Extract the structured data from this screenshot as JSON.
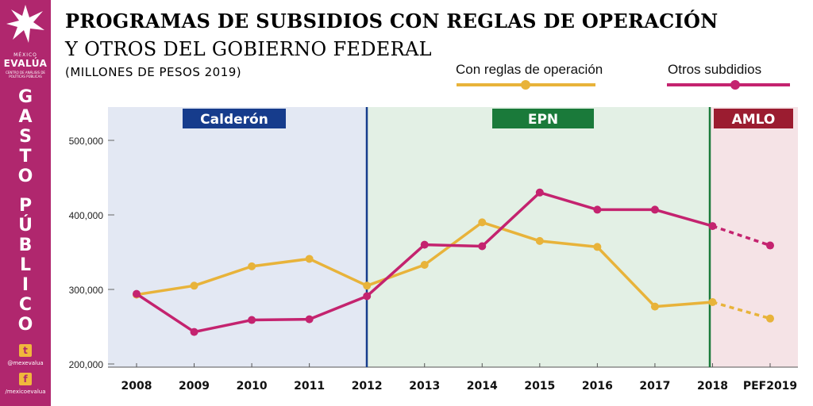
{
  "title": {
    "line1": "PROGRAMAS DE SUBSIDIOS CON REGLAS DE OPERACIÓN",
    "line2": "Y OTROS DEL GOBIERNO FEDERAL",
    "line3": "(MILLONES DE PESOS 2019)"
  },
  "brand": {
    "top": "MÉXICO",
    "main": "EVALÚA",
    "sub": "CENTRO DE ANÁLISIS DE POLÍTICAS PÚBLICAS",
    "vertical_word1": [
      "G",
      "A",
      "S",
      "T",
      "O"
    ],
    "vertical_word2": [
      "P",
      "Ú",
      "B",
      "L",
      "I",
      "C",
      "O"
    ],
    "twitter_icon": "twitter-icon",
    "twitter_handle": "@mexevalua",
    "facebook_icon": "facebook-icon",
    "facebook_handle": "/mexicoevalua"
  },
  "chart_data": {
    "type": "line",
    "categories": [
      "2008",
      "2009",
      "2010",
      "2011",
      "2012",
      "2013",
      "2014",
      "2015",
      "2016",
      "2017",
      "2018",
      "PEF2019"
    ],
    "ylim": [
      190000,
      550000
    ],
    "yticks": [
      200000,
      300000,
      400000,
      500000
    ],
    "ytick_labels": [
      "200,000",
      "300,000",
      "400,000",
      "500,000"
    ],
    "grid": false,
    "legend_position": "top-right",
    "series": [
      {
        "name": "Con reglas de operación",
        "color": "#e8b33a",
        "values": [
          293000,
          305000,
          331000,
          341000,
          305000,
          333000,
          390000,
          365000,
          357000,
          277000,
          283000,
          261000
        ],
        "projected_from_index": 10
      },
      {
        "name": "Otros subdidios",
        "color": "#c4236f",
        "values": [
          294000,
          243000,
          259000,
          260000,
          291000,
          360000,
          358000,
          430000,
          407000,
          407000,
          385000,
          359000
        ],
        "projected_from_index": 10
      }
    ],
    "periods": [
      {
        "label": "Calderón",
        "start": 0,
        "end": 4,
        "bg": "#e3e8f3",
        "badge": "#163c8c",
        "line": "#163c8c"
      },
      {
        "label": "EPN",
        "start": 4,
        "end": 10,
        "bg": "#e3f0e5",
        "badge": "#1a7a3a",
        "line": "#1a7a3a"
      },
      {
        "label": "AMLO",
        "start": 10,
        "end": 11,
        "bg": "#f5e3e6",
        "badge": "#9b1c30"
      }
    ]
  }
}
